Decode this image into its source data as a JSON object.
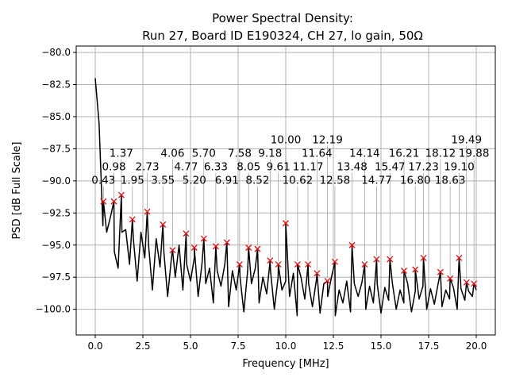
{
  "chart_data": {
    "type": "line",
    "title": [
      "Power Spectral Density:",
      "Run 27, Board ID E190324, CH 27, lo gain, 50Ω"
    ],
    "xlabel": "Frequency [MHz]",
    "ylabel": "PSD [dB Full Scale]",
    "xlim": [
      -1.0,
      21.0
    ],
    "ylim": [
      -102.0,
      -79.5
    ],
    "xticks": [
      0.0,
      2.5,
      5.0,
      7.5,
      10.0,
      12.5,
      15.0,
      17.5,
      20.0
    ],
    "xtick_labels": [
      "0.0",
      "2.5",
      "5.0",
      "7.5",
      "10.0",
      "12.5",
      "15.0",
      "17.5",
      "20.0"
    ],
    "yticks": [
      -80.0,
      -82.5,
      -85.0,
      -87.5,
      -90.0,
      -92.5,
      -95.0,
      -97.5,
      -100.0
    ],
    "ytick_labels": [
      "−80.0",
      "−82.5",
      "−85.0",
      "−87.5",
      "−90.0",
      "−92.5",
      "−95.0",
      "−97.5",
      "−100.0"
    ],
    "grid": true,
    "colors": {
      "line": "#000000",
      "marker": "#ff0000",
      "grid": "#b0b0b0"
    },
    "trace": {
      "x_start": 0.0,
      "x_step": 0.2,
      "y": [
        -82.0,
        -85.5,
        -93.5,
        -94.0,
        -92.8,
        -95.5,
        -96.8,
        -94.0,
        -93.8,
        -96.5,
        -94.5,
        -97.8,
        -94.0,
        -96.0,
        -95.0,
        -98.5,
        -94.5,
        -96.7,
        -95.5,
        -99.0,
        -96.0,
        -97.5,
        -95.0,
        -98.5,
        -96.5,
        -97.8,
        -96.0,
        -99.0,
        -96.5,
        -98.0,
        -96.8,
        -99.5,
        -97.0,
        -98.2,
        -96.5,
        -99.8,
        -97.0,
        -98.5,
        -97.5,
        -100.2,
        -97.0,
        -98.0,
        -96.8,
        -99.5,
        -97.5,
        -98.8,
        -97.0,
        -100.0,
        -97.5,
        -98.5,
        -97.8,
        -99.0,
        -97.2,
        -100.5,
        -97.5,
        -99.2,
        -98.0,
        -99.8,
        -97.8,
        -100.3,
        -98.0,
        -99.0,
        -97.5,
        -100.5,
        -98.5,
        -99.5,
        -97.8,
        -100.2,
        -98.0,
        -99.0,
        -97.9,
        -100.0,
        -98.2,
        -99.5,
        -98.0,
        -100.3,
        -98.3,
        -99.3,
        -98.0,
        -100.0,
        -98.5,
        -99.5,
        -98.0,
        -100.2,
        -98.6,
        -99.2,
        -98.2,
        -100.0,
        -98.4,
        -99.6,
        -98.0,
        -99.8,
        -98.5,
        -99.2,
        -98.3,
        -100.0,
        -98.4,
        -99.3,
        -98.6,
        -99.0,
        -98.5
      ]
    },
    "peaks": [
      {
        "x": 0.43,
        "y": -91.6,
        "label": "0.43"
      },
      {
        "x": 0.98,
        "y": -91.6,
        "label": "0.98"
      },
      {
        "x": 1.37,
        "y": -91.1,
        "label": "1.37"
      },
      {
        "x": 1.95,
        "y": -93.0,
        "label": "1.95"
      },
      {
        "x": 2.73,
        "y": -92.4,
        "label": "2.73"
      },
      {
        "x": 3.55,
        "y": -93.4,
        "label": "3.55"
      },
      {
        "x": 4.06,
        "y": -95.4,
        "label": "4.06"
      },
      {
        "x": 4.77,
        "y": -94.1,
        "label": "4.77"
      },
      {
        "x": 5.2,
        "y": -95.2,
        "label": "5.20"
      },
      {
        "x": 5.7,
        "y": -94.5,
        "label": "5.70"
      },
      {
        "x": 6.33,
        "y": -95.1,
        "label": "6.33"
      },
      {
        "x": 6.91,
        "y": -94.8,
        "label": "6.91"
      },
      {
        "x": 7.58,
        "y": -96.5,
        "label": "7.58"
      },
      {
        "x": 8.05,
        "y": -95.2,
        "label": "8.05"
      },
      {
        "x": 8.52,
        "y": -95.3,
        "label": "8.52"
      },
      {
        "x": 9.18,
        "y": -96.2,
        "label": "9.18"
      },
      {
        "x": 9.61,
        "y": -96.5,
        "label": "9.61"
      },
      {
        "x": 10.0,
        "y": -93.3,
        "label": "10.00"
      },
      {
        "x": 10.62,
        "y": -96.5,
        "label": "10.62"
      },
      {
        "x": 11.17,
        "y": -96.5,
        "label": "11.17"
      },
      {
        "x": 11.64,
        "y": -97.2,
        "label": "11.64"
      },
      {
        "x": 12.19,
        "y": -97.8,
        "label": "12.19"
      },
      {
        "x": 12.58,
        "y": -96.3,
        "label": "12.58"
      },
      {
        "x": 13.48,
        "y": -95.0,
        "label": "13.48"
      },
      {
        "x": 14.14,
        "y": -96.5,
        "label": "14.14"
      },
      {
        "x": 14.77,
        "y": -96.1,
        "label": "14.77"
      },
      {
        "x": 15.47,
        "y": -96.1,
        "label": "15.47"
      },
      {
        "x": 16.21,
        "y": -97.0,
        "label": "16.21"
      },
      {
        "x": 16.8,
        "y": -96.9,
        "label": "16.80"
      },
      {
        "x": 17.23,
        "y": -96.0,
        "label": "17.23"
      },
      {
        "x": 18.12,
        "y": -97.1,
        "label": "18.12"
      },
      {
        "x": 18.63,
        "y": -97.6,
        "label": "18.63"
      },
      {
        "x": 19.1,
        "y": -96.0,
        "label": "19.10"
      },
      {
        "x": 19.49,
        "y": -97.9,
        "label": "19.49"
      },
      {
        "x": 19.88,
        "y": -98.0,
        "label": "19.88"
      }
    ]
  }
}
